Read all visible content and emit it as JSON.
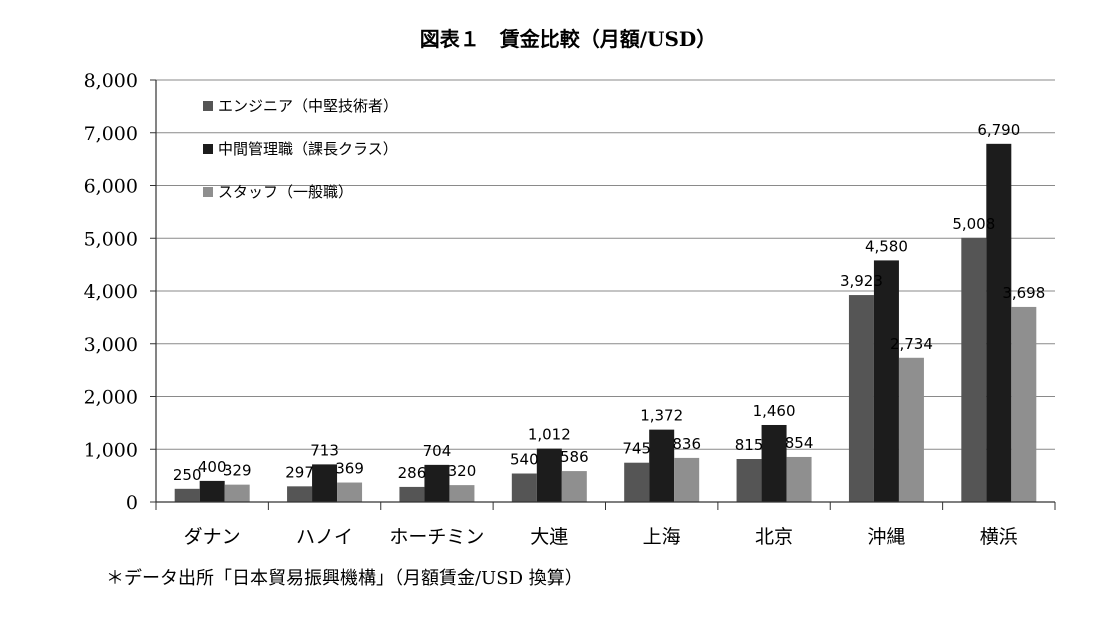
{
  "chart_data": {
    "type": "bar",
    "title": "図表１　賃金比較（月額/USD）",
    "categories": [
      "ダナン",
      "ハノイ",
      "ホーチミン",
      "大連",
      "上海",
      "北京",
      "沖縄",
      "横浜"
    ],
    "series": [
      {
        "name": "エンジニア（中堅技術者）",
        "color": "#555555",
        "values": [
          250,
          297,
          286,
          540,
          745,
          815,
          3923,
          5008
        ],
        "labels": [
          "250",
          "297",
          "286",
          "540",
          "745",
          "815",
          "3,923",
          "5,008"
        ]
      },
      {
        "name": "中間管理職（課長クラス）",
        "color": "#1c1c1c",
        "values": [
          400,
          713,
          704,
          1012,
          1372,
          1460,
          4580,
          6790
        ],
        "labels": [
          "400",
          "713",
          "704",
          "1,012",
          "1,372",
          "1,460",
          "4,580",
          "6,790"
        ]
      },
      {
        "name": "スタッフ（一般職）",
        "color": "#8f8f8f",
        "values": [
          329,
          369,
          320,
          586,
          836,
          854,
          2734,
          3698
        ],
        "labels": [
          "329",
          "369",
          "320",
          "586",
          "836",
          "854",
          "2,734",
          "3,698"
        ]
      }
    ],
    "ylim": [
      0,
      8000
    ],
    "yticks": [
      0,
      1000,
      2000,
      3000,
      4000,
      5000,
      6000,
      7000,
      8000
    ],
    "ytick_labels": [
      "0",
      "1,000",
      "2,000",
      "3,000",
      "4,000",
      "5,000",
      "6,000",
      "7,000",
      "8,000"
    ],
    "grid": true,
    "legend_position": "top-left"
  },
  "footnote": "＊データ出所「日本貿易振興機構」（月額賃金/USD 換算）"
}
